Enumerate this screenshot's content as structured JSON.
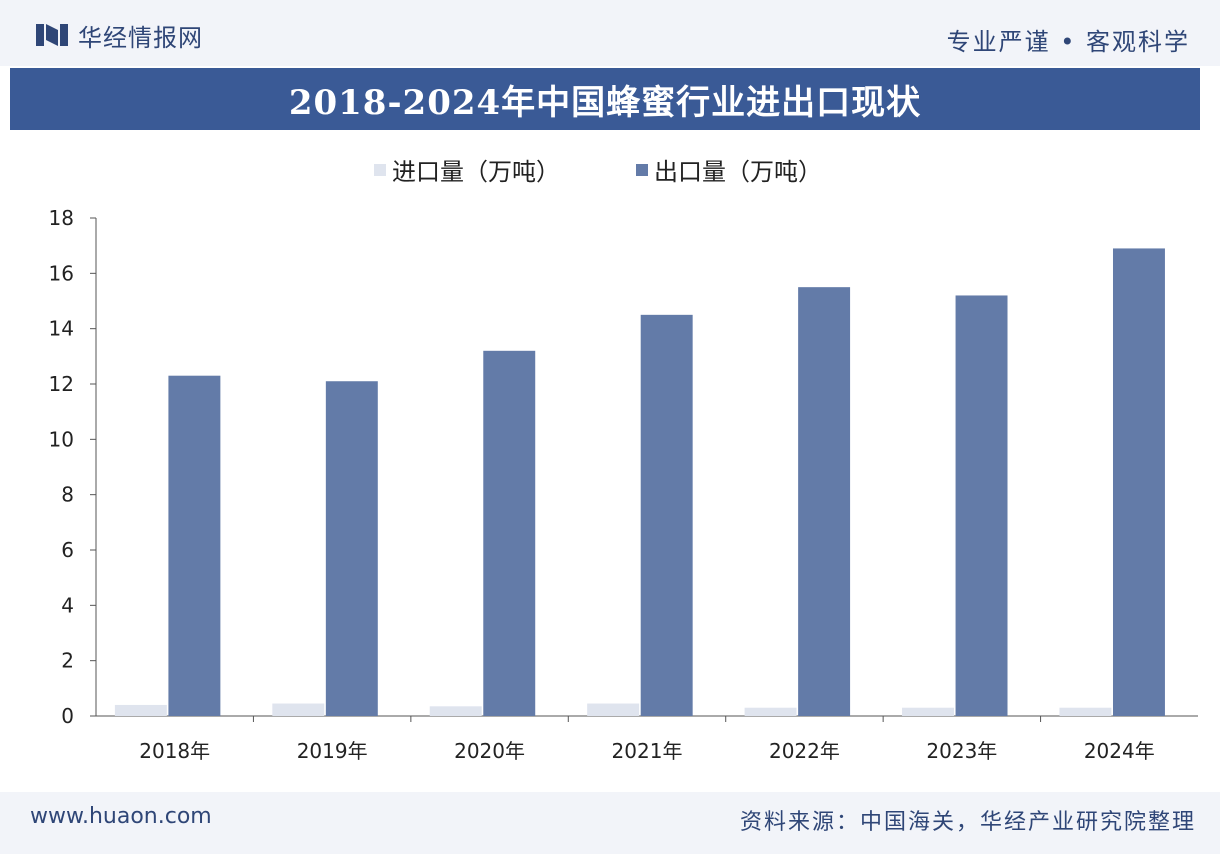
{
  "header": {
    "brand": "华经情报网",
    "slogan": "专业严谨 • 客观科学"
  },
  "title": "2018-2024年中国蜂蜜行业进出口现状",
  "footer": {
    "url": "www.huaon.com",
    "source": "资料来源：中国海关，华经产业研究院整理"
  },
  "colors": {
    "import": "#dfe4ee",
    "export": "#637ba8",
    "header": "#3a5a96",
    "text": "#2f4677"
  },
  "chart_data": {
    "type": "bar",
    "categories": [
      "2018年",
      "2019年",
      "2020年",
      "2021年",
      "2022年",
      "2023年",
      "2024年"
    ],
    "series": [
      {
        "name": "进口量（万吨）",
        "values": [
          0.4,
          0.45,
          0.35,
          0.45,
          0.3,
          0.3,
          0.3
        ]
      },
      {
        "name": "出口量（万吨）",
        "values": [
          12.3,
          12.1,
          13.2,
          14.5,
          15.5,
          15.2,
          16.9
        ]
      }
    ],
    "ylim": [
      0,
      18
    ],
    "yticks": [
      0,
      2,
      4,
      6,
      8,
      10,
      12,
      14,
      16,
      18
    ],
    "grid": false,
    "legend_position": "top-left"
  }
}
